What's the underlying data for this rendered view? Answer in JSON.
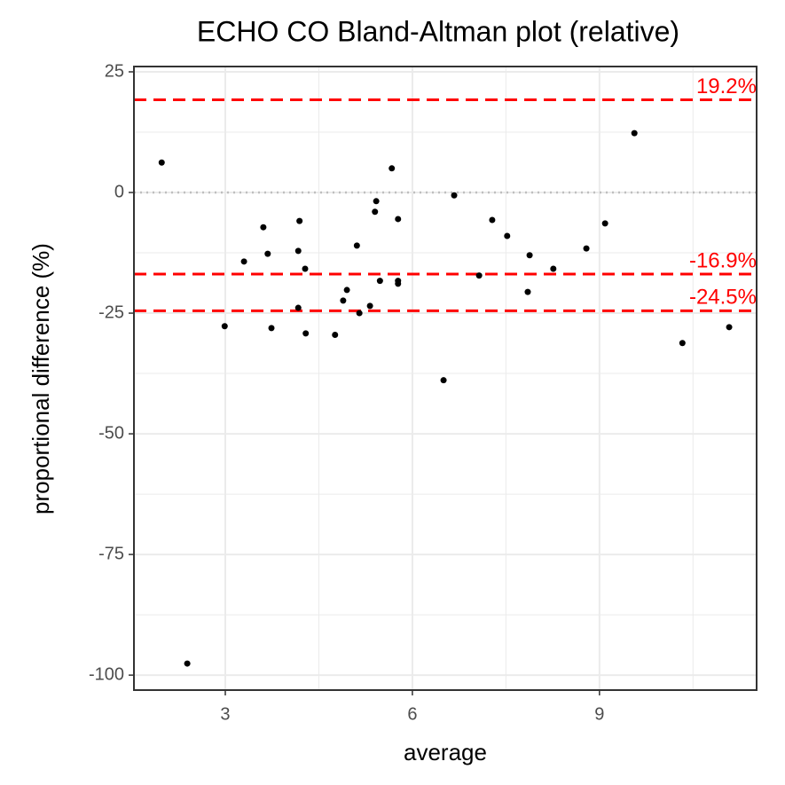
{
  "chart_data": {
    "type": "scatter",
    "title": "ECHO CO   Bland-Altman plot (relative)",
    "x_label": "average",
    "y_label": "proportional difference (%)",
    "x": [
      1.98,
      2.39,
      2.99,
      3.3,
      3.61,
      3.68,
      3.74,
      4.17,
      4.19,
      4.17,
      4.28,
      4.29,
      4.76,
      4.89,
      4.95,
      5.11,
      5.15,
      5.32,
      5.4,
      5.42,
      5.48,
      5.67,
      5.77,
      5.77,
      5.77,
      6.5,
      6.67,
      7.07,
      7.28,
      7.52,
      7.85,
      7.88,
      8.26,
      8.79,
      9.09,
      9.56,
      10.33,
      11.08
    ],
    "values": [
      6.2,
      -97.6,
      -27.7,
      -14.3,
      -7.2,
      -12.7,
      -28.1,
      -12.1,
      -5.9,
      -23.9,
      -15.8,
      -29.2,
      -29.5,
      -22.4,
      -20.2,
      -11.0,
      -25.0,
      -23.5,
      -4.0,
      -1.8,
      -18.3,
      5.0,
      -5.5,
      -18.3,
      -18.9,
      -38.9,
      -0.6,
      -17.2,
      -5.7,
      -9.0,
      -20.6,
      -13.0,
      -15.8,
      -11.6,
      -6.4,
      12.3,
      -31.2,
      -27.9
    ],
    "color": "#000000",
    "xlim": [
      1.535,
      11.52
    ],
    "xticks": [
      3,
      6,
      9
    ],
    "ylim": [
      -103.1,
      26.1
    ],
    "yticks": [
      25,
      0,
      -25,
      -50,
      -75,
      -100
    ],
    "grid": true,
    "reference_lines": [
      {
        "value": 19.2,
        "label": "19.2%",
        "color": "#ff0000",
        "style": "dashed"
      },
      {
        "value": -16.9,
        "label": "-16.9%",
        "color": "#ff0000",
        "style": "dashed"
      },
      {
        "value": -24.5,
        "label": "-24.5%",
        "color": "#ff0000",
        "style": "dashed"
      },
      {
        "value": 0,
        "color": "#bebebe",
        "style": "dotted"
      }
    ]
  }
}
